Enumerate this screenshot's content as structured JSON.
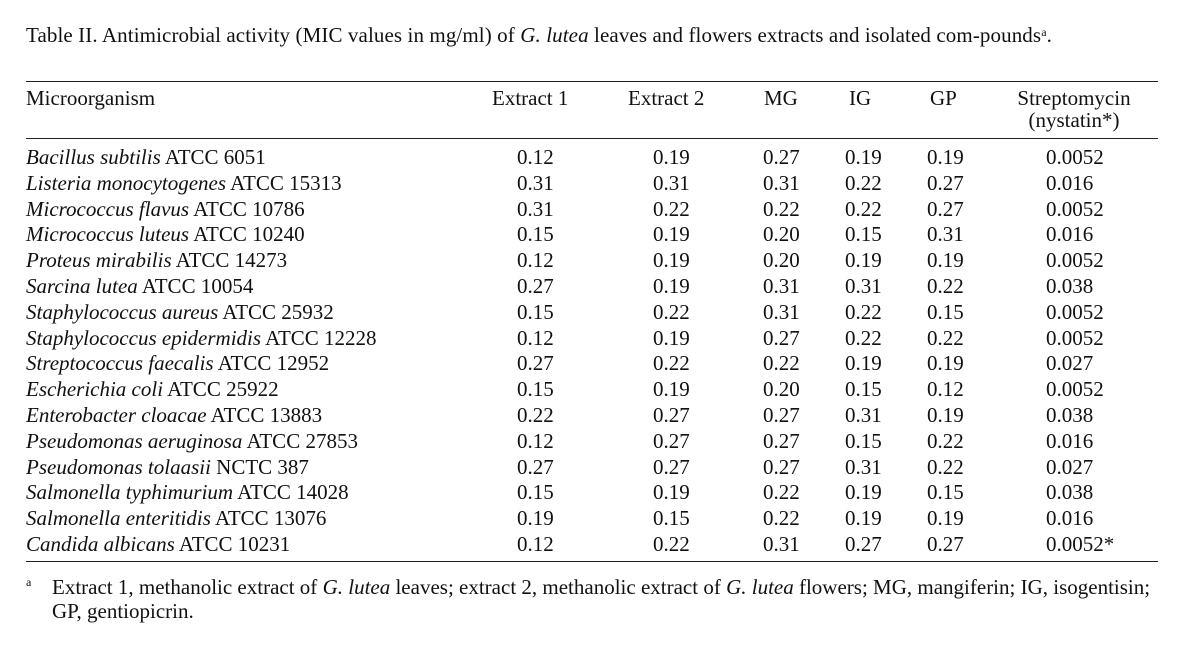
{
  "caption": {
    "prefix": "Table II. Antimicrobial activity (MIC values in mg/ml) of ",
    "genus": "G. lutea",
    "suffix": " leaves and flowers extracts and isolated com-pounds",
    "footnote_mark": "a",
    "end": "."
  },
  "columns": {
    "microorganism": "Microorganism",
    "extract1": "Extract 1",
    "extract2": "Extract 2",
    "mg": "MG",
    "ig": "IG",
    "gp": "GP",
    "streptomycin": "Streptomycin",
    "nystatin": "(nystatin*)"
  },
  "rows": [
    {
      "species": "Bacillus subtilis",
      "strain": "ATCC 6051",
      "ex1": "0.12",
      "ex2": "0.19",
      "mg": "0.27",
      "ig": "0.19",
      "gp": "0.19",
      "strep": "0.0052"
    },
    {
      "species": "Listeria monocytogenes",
      "strain": "ATCC 15313",
      "ex1": "0.31",
      "ex2": "0.31",
      "mg": "0.31",
      "ig": "0.22",
      "gp": "0.27",
      "strep": "0.016"
    },
    {
      "species": "Micrococcus flavus",
      "strain": "ATCC 10786",
      "ex1": "0.31",
      "ex2": "0.22",
      "mg": "0.22",
      "ig": "0.22",
      "gp": "0.27",
      "strep": "0.0052"
    },
    {
      "species": "Micrococcus luteus",
      "strain": "ATCC 10240",
      "ex1": "0.15",
      "ex2": "0.19",
      "mg": "0.20",
      "ig": "0.15",
      "gp": "0.31",
      "strep": "0.016"
    },
    {
      "species": "Proteus mirabilis",
      "strain": "ATCC 14273",
      "ex1": "0.12",
      "ex2": "0.19",
      "mg": "0.20",
      "ig": "0.19",
      "gp": "0.19",
      "strep": "0.0052"
    },
    {
      "species": "Sarcina lutea",
      "strain": "ATCC 10054",
      "ex1": "0.27",
      "ex2": "0.19",
      "mg": "0.31",
      "ig": "0.31",
      "gp": "0.22",
      "strep": "0.038"
    },
    {
      "species": "Staphylococcus aureus",
      "strain": "ATCC 25932",
      "ex1": "0.15",
      "ex2": "0.22",
      "mg": "0.31",
      "ig": "0.22",
      "gp": "0.15",
      "strep": "0.0052"
    },
    {
      "species": "Staphylococcus epidermidis",
      "strain": "ATCC 12228",
      "ex1": "0.12",
      "ex2": "0.19",
      "mg": "0.27",
      "ig": "0.22",
      "gp": "0.22",
      "strep": "0.0052"
    },
    {
      "species": "Streptococcus faecalis",
      "strain": "ATCC 12952",
      "ex1": "0.27",
      "ex2": "0.22",
      "mg": "0.22",
      "ig": "0.19",
      "gp": "0.19",
      "strep": "0.027"
    },
    {
      "species": "Escherichia coli",
      "strain": "ATCC 25922",
      "ex1": "0.15",
      "ex2": "0.19",
      "mg": "0.20",
      "ig": "0.15",
      "gp": "0.12",
      "strep": "0.0052"
    },
    {
      "species": "Enterobacter cloacae",
      "strain": "ATCC 13883",
      "ex1": "0.22",
      "ex2": "0.27",
      "mg": "0.27",
      "ig": "0.31",
      "gp": "0.19",
      "strep": "0.038"
    },
    {
      "species": "Pseudomonas aeruginosa",
      "strain": "ATCC 27853",
      "ex1": "0.12",
      "ex2": "0.27",
      "mg": "0.27",
      "ig": "0.15",
      "gp": "0.22",
      "strep": "0.016"
    },
    {
      "species": "Pseudomonas tolaasii",
      "strain": "NCTC 387",
      "ex1": "0.27",
      "ex2": "0.27",
      "mg": "0.27",
      "ig": "0.31",
      "gp": "0.22",
      "strep": "0.027"
    },
    {
      "species": "Salmonella typhimurium",
      "strain": "ATCC 14028",
      "ex1": "0.15",
      "ex2": "0.19",
      "mg": "0.22",
      "ig": "0.19",
      "gp": "0.15",
      "strep": "0.038"
    },
    {
      "species": "Salmonella enteritidis",
      "strain": "ATCC 13076",
      "ex1": "0.19",
      "ex2": "0.15",
      "mg": "0.22",
      "ig": "0.19",
      "gp": "0.19",
      "strep": "0.016"
    },
    {
      "species": "Candida albicans",
      "strain": "ATCC 10231",
      "ex1": "0.12",
      "ex2": "0.22",
      "mg": "0.31",
      "ig": "0.27",
      "gp": "0.27",
      "strep": "0.0052*"
    }
  ],
  "footnote": {
    "mark": "a",
    "part1": "Extract 1, methanolic extract of ",
    "genus1": "G. lutea",
    "part2": " leaves; extract 2, methanolic extract of ",
    "genus2": "G. lutea",
    "part3": " flowers; MG, mangiferin; IG, isogentisin; GP, gentiopicrin."
  }
}
